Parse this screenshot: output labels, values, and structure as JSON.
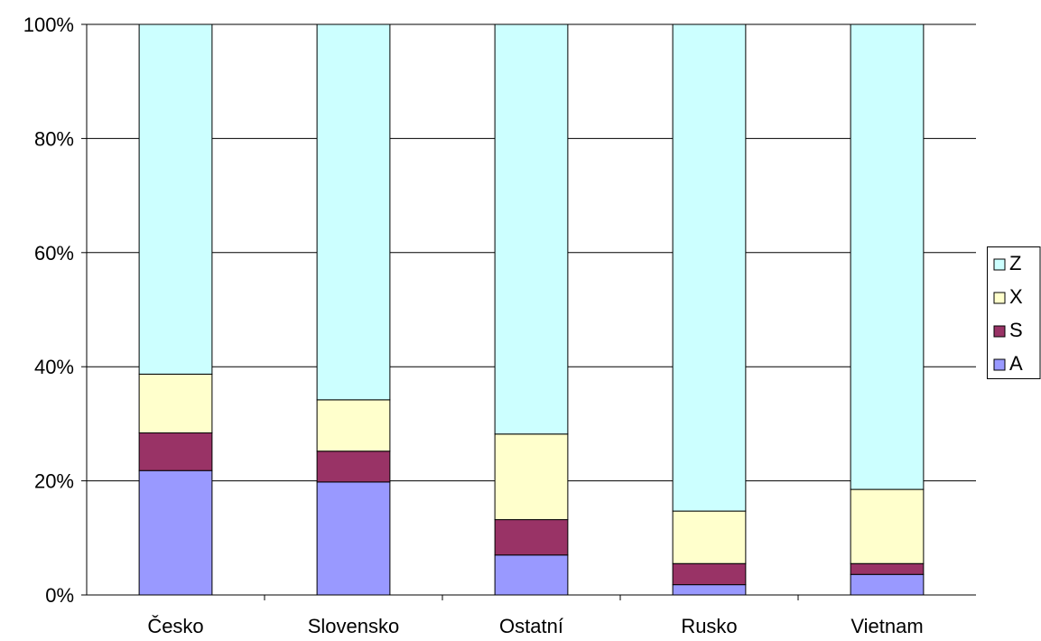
{
  "chart_data": {
    "type": "bar",
    "stacked": "percent",
    "categories": [
      "Česko",
      "Slovensko",
      "Ostatní",
      "Rusko",
      "Vietnam"
    ],
    "series": [
      {
        "name": "A",
        "color": "#9999ff",
        "values": [
          21.8,
          19.8,
          7.0,
          1.8,
          3.6
        ]
      },
      {
        "name": "S",
        "color": "#993366",
        "values": [
          6.6,
          5.4,
          6.2,
          3.7,
          1.9
        ]
      },
      {
        "name": "X",
        "color": "#ffffcc",
        "values": [
          10.3,
          9.0,
          15.0,
          9.2,
          13.0
        ]
      },
      {
        "name": "Z",
        "color": "#ccffff",
        "values": [
          61.3,
          65.8,
          71.8,
          85.3,
          81.5
        ]
      }
    ],
    "y_ticks": [
      "0%",
      "20%",
      "40%",
      "60%",
      "80%",
      "100%"
    ],
    "ylim": [
      0,
      100
    ],
    "grid": true,
    "legend": {
      "placement": "right",
      "order": [
        "Z",
        "X",
        "S",
        "A"
      ]
    }
  }
}
